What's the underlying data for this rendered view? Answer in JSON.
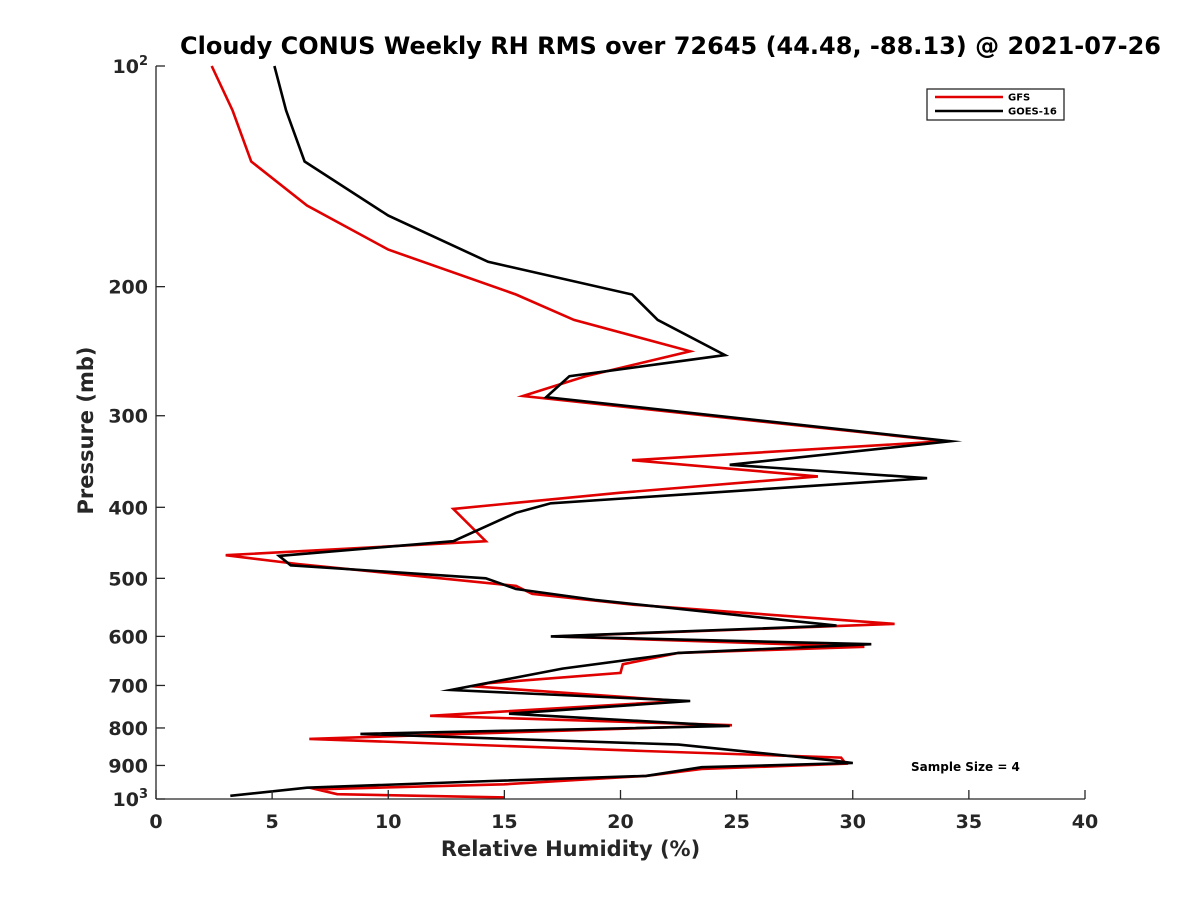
{
  "chart_data": {
    "type": "line",
    "title": "Cloudy CONUS Weekly RH RMS over 72645 (44.48, -88.13) @ 2021-07-26",
    "xlabel": "Relative Humidity (%)",
    "ylabel": "Pressure (mb)",
    "xlim": [
      0,
      40
    ],
    "ylim": [
      100,
      1000
    ],
    "y_scale": "log",
    "y_reversed": true,
    "grid": false,
    "legend_position": "top-right",
    "x_ticks": [
      "0",
      "5",
      "10",
      "15",
      "20",
      "25",
      "30",
      "35",
      "40"
    ],
    "y_ticks": [
      {
        "value": 100,
        "base": "10",
        "exp": "2"
      },
      {
        "value": 200,
        "label": "200"
      },
      {
        "value": 300,
        "label": "300"
      },
      {
        "value": 400,
        "label": "400"
      },
      {
        "value": 500,
        "label": "500"
      },
      {
        "value": 600,
        "label": "600"
      },
      {
        "value": 700,
        "label": "700"
      },
      {
        "value": 800,
        "label": "800"
      },
      {
        "value": 900,
        "label": "900"
      },
      {
        "value": 1000,
        "base": "10",
        "exp": "3"
      }
    ],
    "annotation": "Sample Size = 4",
    "series": [
      {
        "name": "GFS",
        "color": "#e00000",
        "points": [
          [
            2.4,
            100
          ],
          [
            3.3,
            115
          ],
          [
            4.1,
            135
          ],
          [
            6.5,
            155
          ],
          [
            10.0,
            178
          ],
          [
            15.5,
            205
          ],
          [
            18.0,
            222
          ],
          [
            23.0,
            245
          ],
          [
            18.5,
            265
          ],
          [
            15.8,
            282
          ],
          [
            34.0,
            325
          ],
          [
            20.5,
            345
          ],
          [
            28.5,
            363
          ],
          [
            20.0,
            382
          ],
          [
            12.8,
            402
          ],
          [
            14.2,
            445
          ],
          [
            3.0,
            465
          ],
          [
            6.1,
            478
          ],
          [
            15.5,
            512
          ],
          [
            16.2,
            525
          ],
          [
            20.5,
            543
          ],
          [
            31.8,
            577
          ],
          [
            17.2,
            600
          ],
          [
            30.5,
            620
          ],
          [
            22.5,
            632
          ],
          [
            20.1,
            655
          ],
          [
            20.0,
            673
          ],
          [
            14.3,
            695
          ],
          [
            13.7,
            702
          ],
          [
            22.6,
            735
          ],
          [
            11.8,
            770
          ],
          [
            24.8,
            793
          ],
          [
            6.6,
            828
          ],
          [
            21.0,
            860
          ],
          [
            29.5,
            878
          ],
          [
            29.7,
            895
          ],
          [
            23.5,
            910
          ],
          [
            21.1,
            930
          ],
          [
            15.0,
            955
          ],
          [
            6.9,
            970
          ],
          [
            7.8,
            985
          ],
          [
            15.0,
            995
          ]
        ]
      },
      {
        "name": "GOES-16",
        "color": "#000000",
        "points": [
          [
            5.1,
            100
          ],
          [
            5.6,
            115
          ],
          [
            6.4,
            135
          ],
          [
            10.0,
            160
          ],
          [
            14.3,
            185
          ],
          [
            20.5,
            205
          ],
          [
            21.6,
            222
          ],
          [
            24.5,
            248
          ],
          [
            17.8,
            265
          ],
          [
            16.8,
            283
          ],
          [
            34.2,
            325
          ],
          [
            24.7,
            350
          ],
          [
            33.2,
            365
          ],
          [
            17.0,
            395
          ],
          [
            15.5,
            407
          ],
          [
            12.8,
            445
          ],
          [
            5.3,
            466
          ],
          [
            5.8,
            480
          ],
          [
            14.2,
            500
          ],
          [
            15.5,
            517
          ],
          [
            18.9,
            535
          ],
          [
            29.3,
            580
          ],
          [
            17.0,
            600
          ],
          [
            30.8,
            615
          ],
          [
            22.5,
            632
          ],
          [
            21.3,
            640
          ],
          [
            17.5,
            664
          ],
          [
            12.7,
            710
          ],
          [
            23.0,
            735
          ],
          [
            15.2,
            765
          ],
          [
            24.7,
            795
          ],
          [
            8.8,
            815
          ],
          [
            22.5,
            843
          ],
          [
            29.0,
            885
          ],
          [
            30.0,
            893
          ],
          [
            23.5,
            905
          ],
          [
            21.1,
            930
          ],
          [
            14.4,
            945
          ],
          [
            6.5,
            965
          ],
          [
            3.2,
            990
          ]
        ]
      }
    ]
  }
}
